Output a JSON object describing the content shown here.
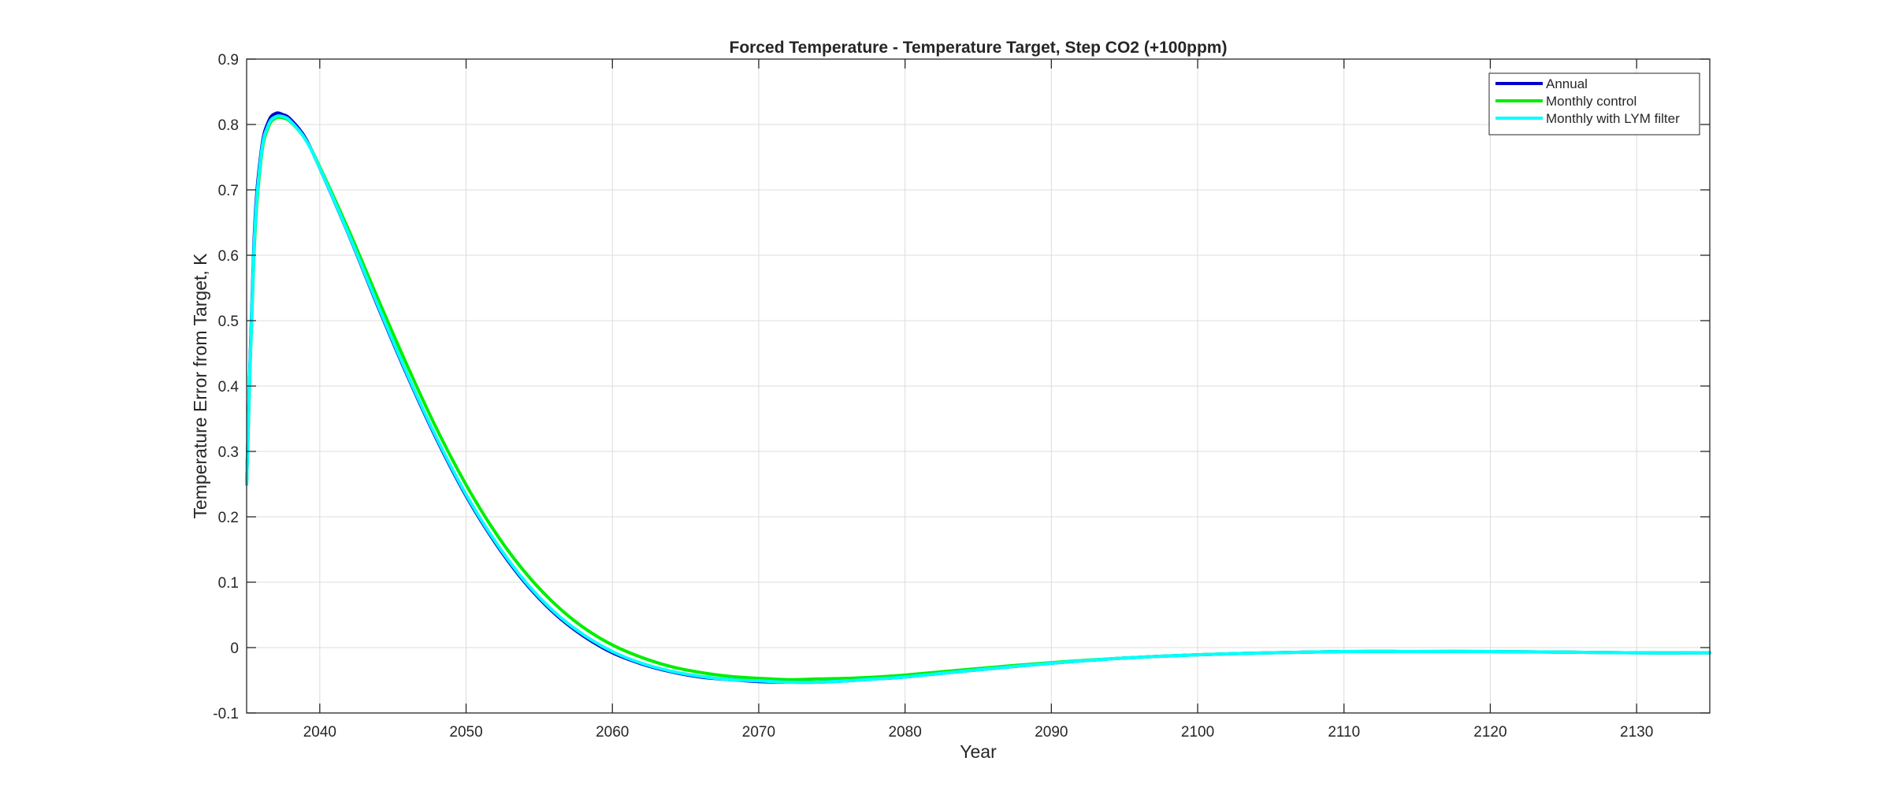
{
  "chart_data": {
    "type": "line",
    "title": "Forced Temperature - Temperature Target, Step CO2 (+100ppm)",
    "xlabel": "Year",
    "ylabel": "Temperature Error from Target, K",
    "xlim": [
      2035,
      2135
    ],
    "ylim": [
      -0.1,
      0.9
    ],
    "xticks": [
      2040,
      2050,
      2060,
      2070,
      2080,
      2090,
      2100,
      2110,
      2120,
      2130
    ],
    "yticks": [
      -0.1,
      0,
      0.1,
      0.2,
      0.3,
      0.4,
      0.5,
      0.6,
      0.7,
      0.8,
      0.9
    ],
    "grid": true,
    "legend_position": "top-right",
    "series": [
      {
        "name": "Annual",
        "color": "#0000CC",
        "x": [
          2035,
          2035.5,
          2036,
          2036.5,
          2037,
          2037.5,
          2038,
          2039,
          2040,
          2042,
          2044,
          2046,
          2048,
          2050,
          2052,
          2054,
          2056,
          2058,
          2060,
          2062,
          2064,
          2066,
          2068,
          2070,
          2072,
          2074,
          2076,
          2078,
          2080,
          2085,
          2090,
          2095,
          2100,
          2105,
          2110,
          2115,
          2120,
          2125,
          2130,
          2135
        ],
        "y": [
          0.25,
          0.62,
          0.76,
          0.805,
          0.817,
          0.815,
          0.808,
          0.78,
          0.733,
          0.63,
          0.52,
          0.415,
          0.318,
          0.232,
          0.16,
          0.1,
          0.053,
          0.018,
          -0.008,
          -0.025,
          -0.037,
          -0.045,
          -0.049,
          -0.052,
          -0.053,
          -0.053,
          -0.051,
          -0.048,
          -0.045,
          -0.034,
          -0.024,
          -0.016,
          -0.011,
          -0.008,
          -0.006,
          -0.006,
          -0.006,
          -0.007,
          -0.008,
          -0.008
        ]
      },
      {
        "name": "Monthly control",
        "color": "#00EE00",
        "x": [
          2035,
          2035.5,
          2036,
          2036.5,
          2037,
          2037.5,
          2038,
          2039,
          2040,
          2042,
          2044,
          2046,
          2048,
          2050,
          2052,
          2054,
          2056,
          2058,
          2060,
          2062,
          2064,
          2066,
          2068,
          2070,
          2072,
          2074,
          2076,
          2078,
          2080,
          2085,
          2090,
          2095,
          2100,
          2105,
          2110,
          2115,
          2120,
          2125,
          2130,
          2135
        ],
        "y": [
          0.25,
          0.6,
          0.75,
          0.797,
          0.81,
          0.81,
          0.804,
          0.778,
          0.735,
          0.637,
          0.532,
          0.43,
          0.334,
          0.249,
          0.176,
          0.116,
          0.068,
          0.031,
          0.004,
          -0.015,
          -0.029,
          -0.038,
          -0.044,
          -0.047,
          -0.049,
          -0.048,
          -0.047,
          -0.045,
          -0.042,
          -0.032,
          -0.023,
          -0.016,
          -0.011,
          -0.008,
          -0.006,
          -0.006,
          -0.006,
          -0.007,
          -0.008,
          -0.008
        ]
      },
      {
        "name": "Monthly with LYM filter",
        "color": "#00FFFF",
        "x": [
          2035,
          2035.5,
          2036,
          2036.5,
          2037,
          2037.5,
          2038,
          2039,
          2040,
          2042,
          2044,
          2046,
          2048,
          2050,
          2052,
          2054,
          2056,
          2058,
          2060,
          2062,
          2064,
          2066,
          2068,
          2070,
          2072,
          2074,
          2076,
          2078,
          2080,
          2085,
          2090,
          2095,
          2100,
          2105,
          2110,
          2115,
          2120,
          2125,
          2130,
          2135
        ],
        "y": [
          0.25,
          0.61,
          0.755,
          0.8,
          0.812,
          0.812,
          0.805,
          0.778,
          0.733,
          0.631,
          0.522,
          0.417,
          0.32,
          0.234,
          0.162,
          0.102,
          0.055,
          0.02,
          -0.006,
          -0.024,
          -0.036,
          -0.044,
          -0.049,
          -0.051,
          -0.053,
          -0.053,
          -0.051,
          -0.048,
          -0.045,
          -0.034,
          -0.024,
          -0.016,
          -0.011,
          -0.008,
          -0.006,
          -0.006,
          -0.006,
          -0.007,
          -0.008,
          -0.008
        ]
      }
    ]
  }
}
